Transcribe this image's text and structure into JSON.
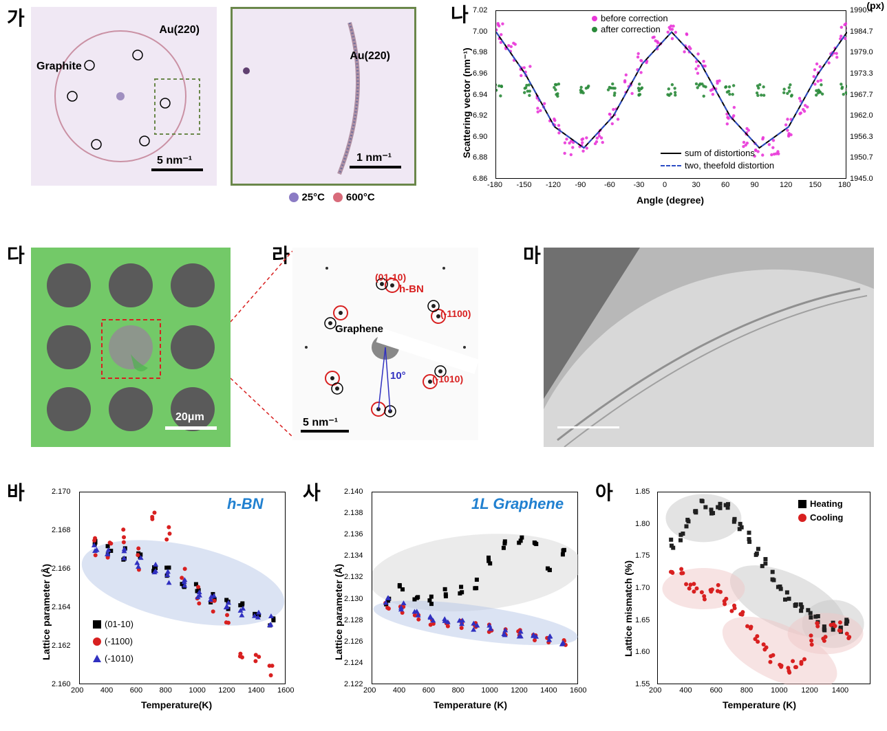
{
  "labels": {
    "ga": "가",
    "na": "나",
    "da": "다",
    "ra": "라",
    "ma": "마",
    "ba": "바",
    "sa": "사",
    "ah": "아"
  },
  "panel_ga": {
    "image_type": "diffraction",
    "bg_color": "#f0e8f4",
    "annotations": {
      "au220": "Au(220)",
      "graphite": "Graphite"
    },
    "scalebar": "5  nm⁻¹",
    "inset": {
      "border_color": "#6a874a",
      "annotation": "Au(220)",
      "scalebar": "1  nm⁻¹"
    },
    "legend_colors": {
      "color25": "#8b7bc4",
      "color600": "#d86b7a",
      "label25": "25°C",
      "label600": "600°C"
    }
  },
  "panel_na": {
    "type": "scatter",
    "xlabel": "Angle (degree)",
    "ylabel_left": "Scattering vector (nm⁻¹)",
    "ylabel_right": "(px)",
    "xlim": [
      -180,
      180
    ],
    "xticks": [
      -180,
      -150,
      -120,
      -90,
      -60,
      -30,
      0,
      30,
      60,
      90,
      120,
      150,
      180
    ],
    "ylim_left": [
      6.86,
      7.02
    ],
    "yticks_left": [
      6.86,
      6.88,
      6.9,
      6.92,
      6.94,
      6.96,
      6.98,
      7.0,
      7.02
    ],
    "yticks_right": [
      1945.0,
      1950.7,
      1956.3,
      1962.0,
      1967.7,
      1973.3,
      1979.0,
      1984.7,
      1990.4
    ],
    "legend": {
      "before": {
        "label": "before correction",
        "color": "#e937d8",
        "marker": "circle"
      },
      "after": {
        "label": "after correction",
        "color": "#2a8a3a",
        "marker": "circle"
      },
      "sum": {
        "label": "sum of distortions",
        "color": "#000000",
        "style": "solid"
      },
      "twofold": {
        "label": "two, theefold distortion",
        "color": "#2a4bc4",
        "style": "dash"
      }
    },
    "before_data_approx": [
      [
        -178,
        7.0
      ],
      [
        -165,
        6.98
      ],
      [
        -150,
        6.96
      ],
      [
        -135,
        6.93
      ],
      [
        -120,
        6.91
      ],
      [
        -105,
        6.89
      ],
      [
        -90,
        6.89
      ],
      [
        -75,
        6.9
      ],
      [
        -60,
        6.92
      ],
      [
        -45,
        6.95
      ],
      [
        -30,
        6.97
      ],
      [
        -15,
        6.99
      ],
      [
        0,
        7.0
      ],
      [
        15,
        6.99
      ],
      [
        30,
        6.97
      ],
      [
        45,
        6.95
      ],
      [
        60,
        6.92
      ],
      [
        75,
        6.9
      ],
      [
        90,
        6.89
      ],
      [
        105,
        6.89
      ],
      [
        120,
        6.91
      ],
      [
        135,
        6.93
      ],
      [
        150,
        6.96
      ],
      [
        165,
        6.98
      ],
      [
        178,
        7.0
      ]
    ],
    "after_data_approx": [
      [
        -178,
        6.945
      ],
      [
        -150,
        6.945
      ],
      [
        -120,
        6.945
      ],
      [
        -90,
        6.945
      ],
      [
        -60,
        6.945
      ],
      [
        -30,
        6.945
      ],
      [
        0,
        6.945
      ],
      [
        30,
        6.945
      ],
      [
        60,
        6.945
      ],
      [
        90,
        6.945
      ],
      [
        120,
        6.945
      ],
      [
        150,
        6.945
      ],
      [
        178,
        6.945
      ]
    ],
    "sum_curve": [
      [
        -180,
        7.0
      ],
      [
        -150,
        6.96
      ],
      [
        -120,
        6.91
      ],
      [
        -90,
        6.89
      ],
      [
        -60,
        6.92
      ],
      [
        -30,
        6.97
      ],
      [
        0,
        7.0
      ],
      [
        30,
        6.97
      ],
      [
        60,
        6.92
      ],
      [
        90,
        6.89
      ],
      [
        120,
        6.91
      ],
      [
        150,
        6.96
      ],
      [
        180,
        7.0
      ]
    ],
    "twofold_curve": [
      [
        -180,
        7.0
      ],
      [
        -150,
        6.96
      ],
      [
        -120,
        6.91
      ],
      [
        -90,
        6.89
      ],
      [
        -60,
        6.92
      ],
      [
        -30,
        6.97
      ],
      [
        0,
        7.0
      ],
      [
        30,
        6.97
      ],
      [
        60,
        6.92
      ],
      [
        90,
        6.89
      ],
      [
        120,
        6.91
      ],
      [
        150,
        6.96
      ],
      [
        180,
        7.0
      ]
    ],
    "label_fontsize": 15,
    "tick_fontsize": 12
  },
  "panel_da": {
    "bg_color": "#73c968",
    "hole_color": "#5a5a5a",
    "scalebar": "20μm",
    "scalebar_color": "#ffffff"
  },
  "panel_ra": {
    "bg_color": "#f8f8f8",
    "annotations": {
      "hbn": "h-BN",
      "hbn_color": "#d82020",
      "graphene": "Graphene",
      "graphene_color": "#000000",
      "idx1": "(01-10)",
      "idx2": "(-1100)",
      "idx3": "(-1010)",
      "angle": "10°",
      "angle_color": "#3030c0"
    },
    "scalebar": "5 nm⁻¹"
  },
  "panel_ma": {
    "image_type": "TEM micrograph",
    "scalebar_color": "#ffffff"
  },
  "panel_ba": {
    "type": "scatter",
    "title": "h-BN",
    "title_color": "#2080d0",
    "xlabel": "Temperature(K)",
    "ylabel": "Lattice parameter (Å)",
    "xlim": [
      200,
      1600
    ],
    "xticks": [
      200,
      400,
      600,
      800,
      1000,
      1200,
      1400,
      1600
    ],
    "ylim": [
      2.16,
      2.17
    ],
    "yticks": [
      2.16,
      2.162,
      2.164,
      2.166,
      2.168,
      2.17
    ],
    "legend": {
      "s1": {
        "label": "(01-10)",
        "marker": "square",
        "color": "#000000"
      },
      "s2": {
        "label": "(-1100)",
        "marker": "circle",
        "color": "#d82020"
      },
      "s3": {
        "label": "(-1010)",
        "marker": "triangle",
        "color": "#3030c0"
      }
    },
    "trend_ellipse_color": "#b8c8e8",
    "data_approx": {
      "0110": [
        [
          300,
          2.1675
        ],
        [
          400,
          2.167
        ],
        [
          500,
          2.1668
        ],
        [
          600,
          2.1665
        ],
        [
          700,
          2.166
        ],
        [
          800,
          2.1657
        ],
        [
          900,
          2.1654
        ],
        [
          1000,
          2.165
        ],
        [
          1100,
          2.1646
        ],
        [
          1200,
          2.1643
        ],
        [
          1300,
          2.164
        ],
        [
          1400,
          2.1636
        ],
        [
          1500,
          2.1632
        ]
      ],
      "1100": [
        [
          300,
          2.1672
        ],
        [
          400,
          2.1668
        ],
        [
          500,
          2.1675
        ],
        [
          600,
          2.1665
        ],
        [
          700,
          2.1685
        ],
        [
          800,
          2.1678
        ],
        [
          900,
          2.1655
        ],
        [
          1000,
          2.1648
        ],
        [
          1100,
          2.1642
        ],
        [
          1200,
          2.1638
        ],
        [
          1300,
          2.162
        ],
        [
          1400,
          2.1612
        ],
        [
          1500,
          2.1605
        ]
      ],
      "1010": [
        [
          300,
          2.1672
        ],
        [
          400,
          2.167
        ],
        [
          500,
          2.1668
        ],
        [
          600,
          2.1664
        ],
        [
          700,
          2.166
        ],
        [
          800,
          2.1656
        ],
        [
          900,
          2.1652
        ],
        [
          1000,
          2.1648
        ],
        [
          1100,
          2.1645
        ],
        [
          1200,
          2.1642
        ],
        [
          1300,
          2.1639
        ],
        [
          1400,
          2.1636
        ],
        [
          1500,
          2.1633
        ]
      ]
    }
  },
  "panel_sa": {
    "type": "scatter",
    "title": "1L Graphene",
    "title_color": "#2080d0",
    "xlabel": "Temperature (K)",
    "ylabel": "Lattice parameter (Å)",
    "xlim": [
      200,
      1600
    ],
    "xticks": [
      200,
      400,
      600,
      800,
      1000,
      1200,
      1400,
      1600
    ],
    "ylim": [
      2.122,
      2.14
    ],
    "yticks": [
      2.122,
      2.124,
      2.126,
      2.128,
      2.13,
      2.132,
      2.134,
      2.136,
      2.138,
      2.14
    ],
    "legend_same_as_ba": true,
    "trend_ellipse_color_1": "#d8d8d8",
    "trend_ellipse_color_2": "#b8c8e8",
    "data_approx": {
      "0110": [
        [
          300,
          2.13
        ],
        [
          400,
          2.131
        ],
        [
          500,
          2.13
        ],
        [
          600,
          2.13
        ],
        [
          700,
          2.1305
        ],
        [
          800,
          2.131
        ],
        [
          900,
          2.1315
        ],
        [
          1000,
          2.1335
        ],
        [
          1100,
          2.135
        ],
        [
          1200,
          2.1355
        ],
        [
          1300,
          2.135
        ],
        [
          1400,
          2.133
        ],
        [
          1500,
          2.1345
        ]
      ],
      "1100": [
        [
          300,
          2.1295
        ],
        [
          400,
          2.129
        ],
        [
          500,
          2.1285
        ],
        [
          600,
          2.128
        ],
        [
          700,
          2.1278
        ],
        [
          800,
          2.1277
        ],
        [
          900,
          2.1275
        ],
        [
          1000,
          2.1273
        ],
        [
          1100,
          2.127
        ],
        [
          1200,
          2.1268
        ],
        [
          1300,
          2.1265
        ],
        [
          1400,
          2.1262
        ],
        [
          1500,
          2.126
        ]
      ],
      "1010": [
        [
          300,
          2.13
        ],
        [
          400,
          2.1293
        ],
        [
          500,
          2.1288
        ],
        [
          600,
          2.1283
        ],
        [
          700,
          2.128
        ],
        [
          800,
          2.1278
        ],
        [
          900,
          2.1275
        ],
        [
          1000,
          2.1272
        ],
        [
          1100,
          2.127
        ],
        [
          1200,
          2.1268
        ],
        [
          1300,
          2.1266
        ],
        [
          1400,
          2.1263
        ],
        [
          1500,
          2.126
        ]
      ]
    }
  },
  "panel_ah": {
    "type": "scatter",
    "xlabel": "Temperature (K)",
    "ylabel": "Lattice mismatch (%)",
    "xlim": [
      200,
      1600
    ],
    "xticks": [
      200,
      400,
      600,
      800,
      1000,
      1200,
      1400
    ],
    "ylim": [
      1.55,
      1.85
    ],
    "yticks": [
      1.55,
      1.6,
      1.65,
      1.7,
      1.75,
      1.8,
      1.85
    ],
    "legend": {
      "heating": {
        "label": "Heating",
        "marker": "square",
        "color": "#000000"
      },
      "cooling": {
        "label": "Cooling",
        "marker": "circle",
        "color": "#d82020"
      }
    },
    "trend_color_heat": "#c8c8c8",
    "trend_color_cool": "#f0c8c8",
    "data_approx": {
      "heating": [
        [
          300,
          1.77
        ],
        [
          350,
          1.78
        ],
        [
          400,
          1.8
        ],
        [
          450,
          1.82
        ],
        [
          500,
          1.83
        ],
        [
          550,
          1.82
        ],
        [
          600,
          1.83
        ],
        [
          650,
          1.83
        ],
        [
          700,
          1.81
        ],
        [
          750,
          1.8
        ],
        [
          800,
          1.78
        ],
        [
          850,
          1.76
        ],
        [
          900,
          1.74
        ],
        [
          950,
          1.72
        ],
        [
          1000,
          1.7
        ],
        [
          1050,
          1.69
        ],
        [
          1100,
          1.68
        ],
        [
          1150,
          1.67
        ],
        [
          1200,
          1.66
        ],
        [
          1250,
          1.65
        ],
        [
          1300,
          1.64
        ],
        [
          1350,
          1.64
        ],
        [
          1400,
          1.64
        ],
        [
          1450,
          1.65
        ]
      ],
      "cooling": [
        [
          300,
          1.73
        ],
        [
          350,
          1.73
        ],
        [
          400,
          1.7
        ],
        [
          450,
          1.7
        ],
        [
          500,
          1.69
        ],
        [
          550,
          1.7
        ],
        [
          600,
          1.7
        ],
        [
          650,
          1.68
        ],
        [
          700,
          1.67
        ],
        [
          750,
          1.66
        ],
        [
          800,
          1.64
        ],
        [
          850,
          1.62
        ],
        [
          900,
          1.61
        ],
        [
          950,
          1.59
        ],
        [
          1000,
          1.58
        ],
        [
          1050,
          1.57
        ],
        [
          1100,
          1.58
        ],
        [
          1150,
          1.59
        ],
        [
          1200,
          1.62
        ],
        [
          1250,
          1.64
        ],
        [
          1300,
          1.62
        ],
        [
          1350,
          1.64
        ],
        [
          1400,
          1.64
        ],
        [
          1450,
          1.63
        ]
      ]
    }
  }
}
